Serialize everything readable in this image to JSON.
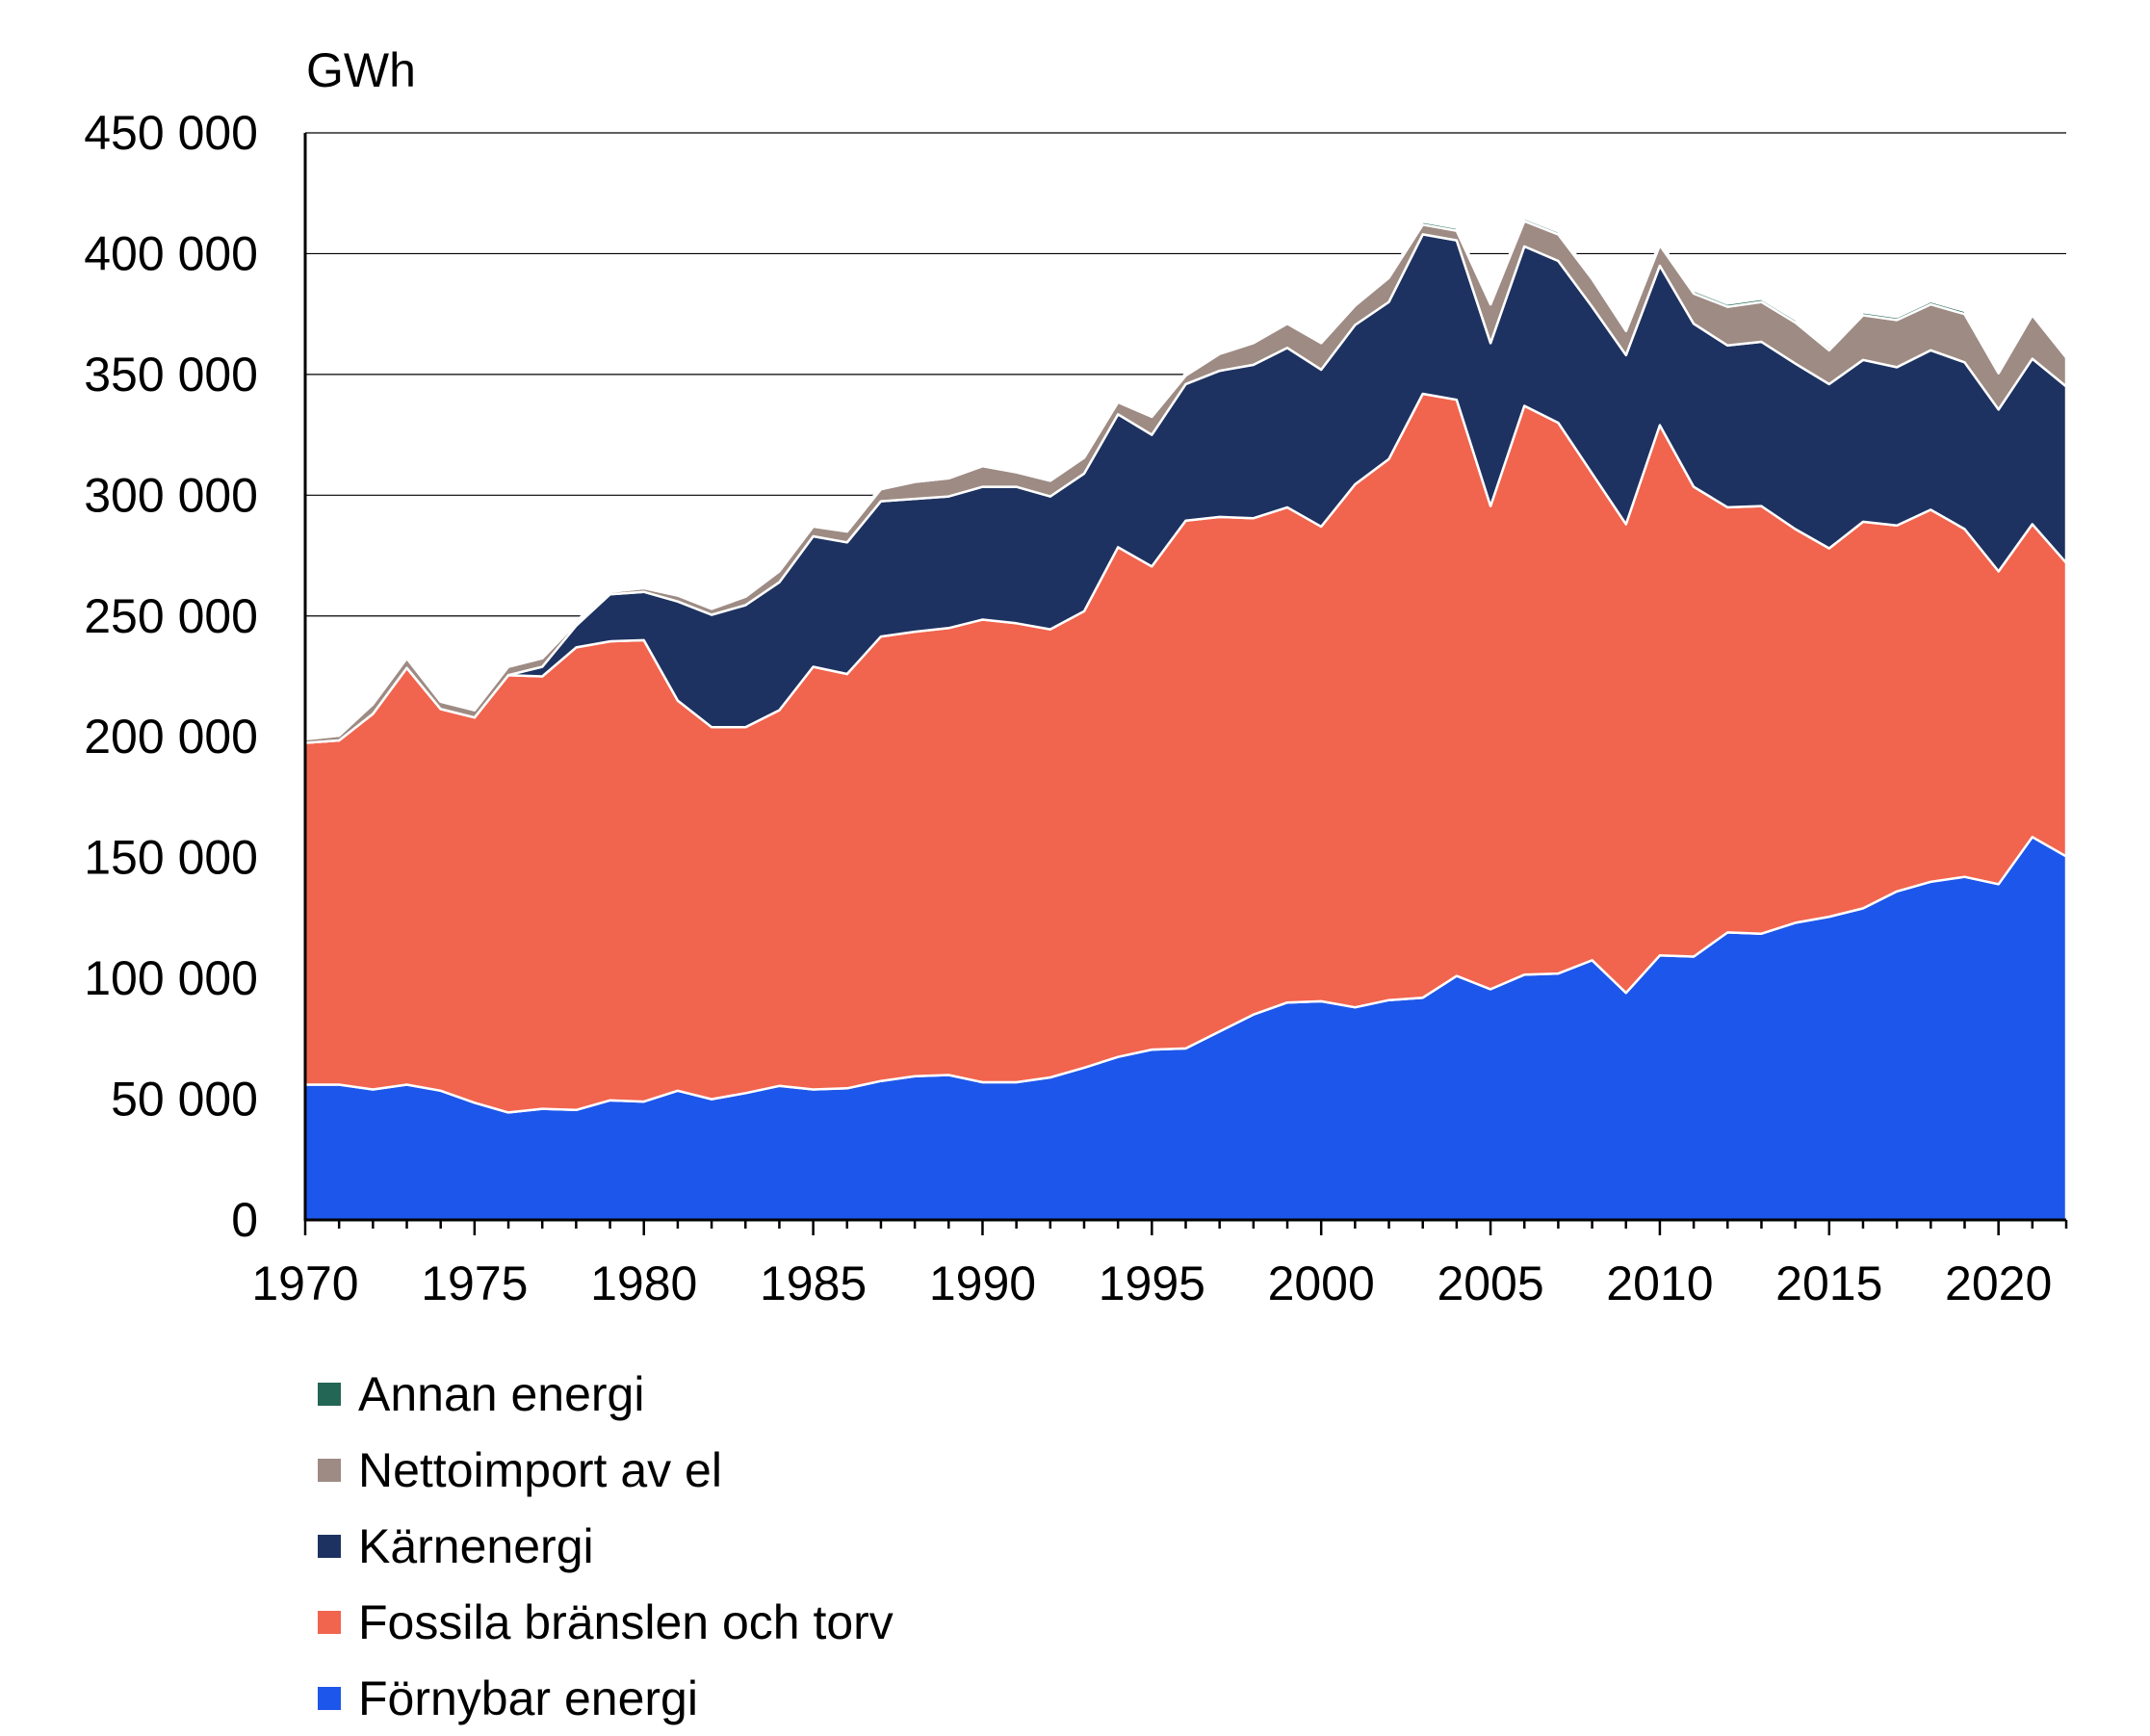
{
  "chart_data": {
    "type": "area",
    "stacked": true,
    "unit_label": "GWh",
    "xlabel": "",
    "ylabel": "GWh",
    "xlim": [
      1970,
      2022
    ],
    "ylim": [
      0,
      450000
    ],
    "x_ticks": [
      "1970",
      "1975",
      "1980",
      "1985",
      "1990",
      "1995",
      "2000",
      "2005",
      "2010",
      "2015",
      "2020"
    ],
    "y_ticks": [
      "0",
      "50 000",
      "100 000",
      "150 000",
      "200 000",
      "250 000",
      "300 000",
      "350 000",
      "400 000",
      "450 000"
    ],
    "grid": "horizontal",
    "legend_position": "bottom-left",
    "x": [
      1970,
      1971,
      1972,
      1973,
      1974,
      1975,
      1976,
      1977,
      1978,
      1979,
      1980,
      1981,
      1982,
      1983,
      1984,
      1985,
      1986,
      1987,
      1988,
      1989,
      1990,
      1991,
      1992,
      1993,
      1994,
      1995,
      1996,
      1997,
      1998,
      1999,
      2000,
      2001,
      2002,
      2003,
      2004,
      2005,
      2006,
      2007,
      2008,
      2009,
      2010,
      2011,
      2012,
      2013,
      2014,
      2015,
      2016,
      2017,
      2018,
      2019,
      2020,
      2021,
      2022
    ],
    "series": [
      {
        "name": "Förnybar energi",
        "color": "#1d56ea",
        "values": [
          56000,
          56000,
          54000,
          56000,
          53500,
          48500,
          44500,
          46000,
          45500,
          49500,
          49000,
          53500,
          50000,
          52500,
          55500,
          54000,
          54500,
          57500,
          59500,
          60000,
          57000,
          57000,
          59000,
          63000,
          67500,
          70500,
          71000,
          78000,
          85000,
          90000,
          90500,
          88000,
          91000,
          92000,
          101000,
          95500,
          101500,
          102000,
          107500,
          94000,
          109500,
          109000,
          119000,
          118500,
          123000,
          125500,
          129000,
          136000,
          140000,
          142000,
          139000,
          158500,
          150500
        ]
      },
      {
        "name": "Fossila bränslen och torv",
        "color": "#f1644e",
        "values": [
          141500,
          142500,
          155500,
          172500,
          158000,
          159500,
          181000,
          179000,
          191500,
          190000,
          191000,
          161500,
          154000,
          151500,
          155500,
          175000,
          171500,
          184000,
          184000,
          185000,
          191500,
          190000,
          185500,
          189000,
          211000,
          200000,
          218500,
          213000,
          205500,
          205000,
          196500,
          216500,
          224000,
          250000,
          238500,
          200000,
          235500,
          228000,
          201500,
          194000,
          219500,
          194500,
          176000,
          177000,
          163000,
          152500,
          160000,
          151500,
          154000,
          144000,
          129500,
          129500,
          121500
        ]
      },
      {
        "name": "Kärnenergi",
        "color": "#1d3260",
        "values": [
          0,
          0,
          0,
          0,
          0,
          0,
          0,
          4000,
          9000,
          19500,
          20000,
          41000,
          46500,
          50500,
          53000,
          54000,
          54500,
          56000,
          55000,
          54500,
          55000,
          56500,
          55000,
          57000,
          55000,
          54500,
          56500,
          60500,
          63500,
          66000,
          65000,
          66000,
          65000,
          66000,
          66000,
          67500,
          66000,
          67000,
          69000,
          70000,
          66000,
          67500,
          67000,
          68000,
          68500,
          68000,
          67000,
          65500,
          66000,
          69000,
          67000,
          68500,
          73000
        ]
      },
      {
        "name": "Nettoimport av el",
        "color": "#9d8b84",
        "values": [
          1500,
          2000,
          4000,
          4000,
          3000,
          3000,
          3500,
          3500,
          1000,
          1000,
          1500,
          2500,
          2500,
          3500,
          4500,
          4000,
          4500,
          5000,
          7000,
          7500,
          8500,
          6000,
          6500,
          6500,
          5000,
          7500,
          3500,
          7000,
          9000,
          10000,
          11000,
          8000,
          10000,
          4000,
          4000,
          16000,
          10500,
          11000,
          11500,
          10000,
          8500,
          12500,
          16000,
          16500,
          17000,
          14000,
          18500,
          19500,
          19000,
          20000,
          15000,
          18000,
          12000
        ]
      },
      {
        "name": "Annan energi",
        "color": "#236655",
        "values": [
          800,
          800,
          800,
          800,
          800,
          800,
          800,
          800,
          800,
          800,
          800,
          800,
          900,
          900,
          900,
          900,
          900,
          900,
          900,
          900,
          900,
          900,
          900,
          900,
          1000,
          1000,
          1000,
          1000,
          1000,
          1000,
          1000,
          1000,
          1000,
          1200,
          1200,
          1200,
          1200,
          1200,
          1200,
          1200,
          1300,
          1300,
          1300,
          1300,
          1300,
          1300,
          1300,
          1300,
          1300,
          1300,
          1300,
          1300,
          1300
        ]
      }
    ]
  }
}
